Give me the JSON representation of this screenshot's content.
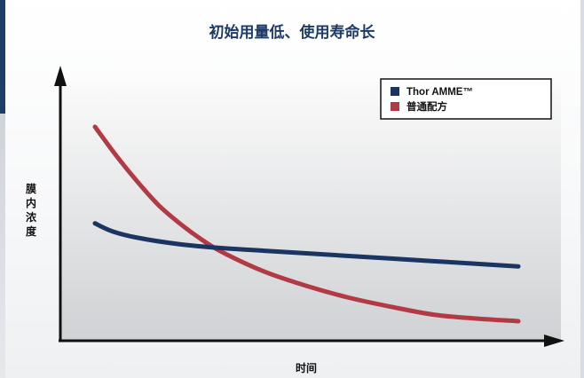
{
  "chart_data": {
    "type": "line",
    "title": "初始用量低、使用寿命长",
    "xlabel": "时间",
    "ylabel": "膜内浓度",
    "xlim": [
      0,
      100
    ],
    "ylim": [
      0,
      100
    ],
    "ticks_shown": false,
    "grid": false,
    "legend_position": "top-right",
    "series": [
      {
        "name": "Thor AMME™",
        "color": "#1b3563",
        "x": [
          0,
          4,
          10,
          20,
          30,
          40,
          50,
          60,
          70,
          80,
          90,
          100
        ],
        "y": [
          45,
          42,
          39.5,
          37,
          35.5,
          34.5,
          33.5,
          32.5,
          31.5,
          30.5,
          29.5,
          28.5
        ]
      },
      {
        "name": "普通配方",
        "color": "#b23a45",
        "x": [
          0,
          5,
          10,
          15,
          20,
          25,
          30,
          40,
          50,
          60,
          70,
          80,
          90,
          100
        ],
        "y": [
          82,
          71,
          61,
          52,
          45,
          39,
          34,
          26.5,
          21,
          16.5,
          13,
          10,
          8.5,
          7.5
        ]
      }
    ]
  }
}
